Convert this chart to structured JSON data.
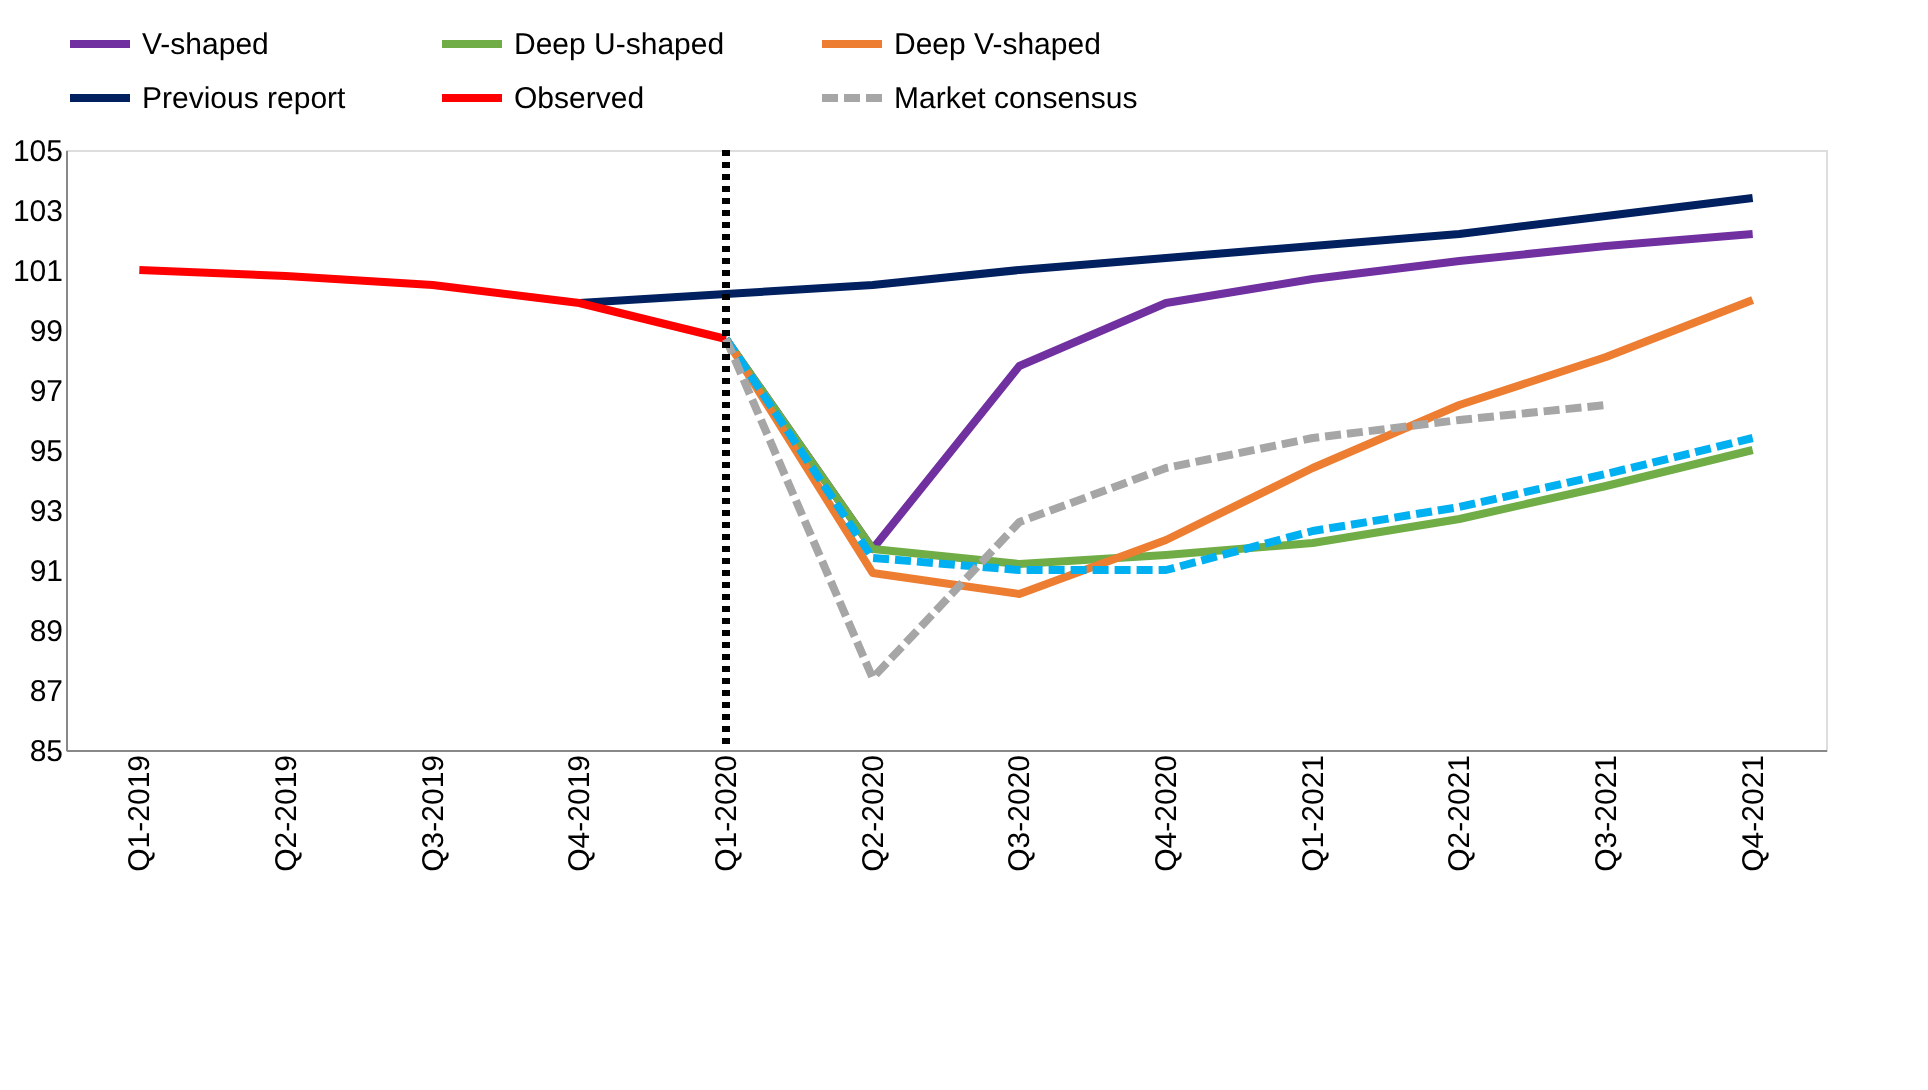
{
  "chart_data": {
    "type": "line",
    "categories": [
      "Q1-2019",
      "Q2-2019",
      "Q3-2019",
      "Q4-2019",
      "Q1-2020",
      "Q2-2020",
      "Q3-2020",
      "Q4-2020",
      "Q1-2021",
      "Q2-2021",
      "Q3-2021",
      "Q4-2021"
    ],
    "series": [
      {
        "name": "V-shaped",
        "color": "#7030a0",
        "line_style": "solid",
        "values": [
          null,
          null,
          null,
          null,
          98.7,
          91.7,
          97.8,
          99.9,
          100.7,
          101.3,
          101.8,
          102.2
        ]
      },
      {
        "name": "Deep U-shaped",
        "color": "#70ad47",
        "line_style": "solid",
        "values": [
          null,
          null,
          null,
          null,
          98.7,
          91.7,
          91.2,
          91.5,
          91.9,
          92.7,
          93.8,
          95.0
        ]
      },
      {
        "name": "Deep V-shaped",
        "color": "#ed7d31",
        "line_style": "solid",
        "values": [
          null,
          null,
          null,
          null,
          98.7,
          90.9,
          90.2,
          92.0,
          94.4,
          96.5,
          98.1,
          100.0
        ]
      },
      {
        "name": "Previous report",
        "color": "#002060",
        "line_style": "solid",
        "values": [
          null,
          null,
          null,
          99.9,
          100.2,
          100.5,
          101.0,
          101.4,
          101.8,
          102.2,
          102.8,
          103.4
        ]
      },
      {
        "name": "Observed",
        "color": "#ff0000",
        "line_style": "solid",
        "values": [
          101.0,
          100.8,
          100.5,
          99.9,
          98.7,
          null,
          null,
          null,
          null,
          null,
          null,
          null
        ]
      },
      {
        "color": "#00b0f0",
        "line_style": "dashed",
        "values": [
          null,
          null,
          null,
          null,
          98.7,
          91.4,
          91.0,
          91.0,
          92.3,
          93.1,
          94.2,
          95.4
        ]
      },
      {
        "name": "Market consensus",
        "color": "#a6a6a6",
        "line_style": "dashed",
        "values": [
          null,
          null,
          null,
          null,
          98.7,
          87.4,
          92.6,
          94.4,
          95.4,
          96.0,
          96.5,
          null
        ]
      }
    ],
    "ylim": [
      85,
      105
    ],
    "yticks": [
      85,
      87,
      89,
      91,
      93,
      95,
      97,
      99,
      101,
      103,
      105
    ],
    "grid": false,
    "legend": "top",
    "marker": "none",
    "ref_lines": [
      {
        "axis": "x",
        "value": "Q1-2020",
        "color": "#000000",
        "line_style": "dotted"
      }
    ]
  }
}
